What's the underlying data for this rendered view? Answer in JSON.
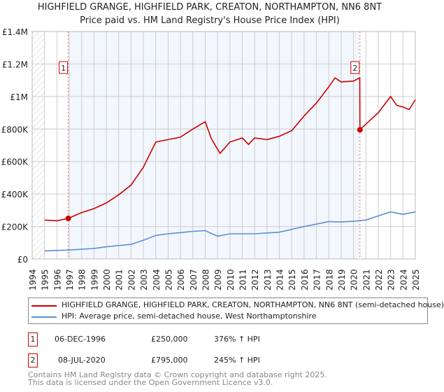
{
  "chart_data": {
    "type": "line",
    "title": "HIGHFIELD GRANGE, HIGHFIELD PARK, CREATON, NORTHAMPTON, NN6 8NT",
    "subtitle": "Price paid vs. HM Land Registry's House Price Index (HPI)",
    "xlim": [
      1994,
      2025
    ],
    "ylim": [
      0,
      1400000
    ],
    "x_ticks": [
      "1994",
      "1995",
      "1996",
      "1997",
      "1998",
      "1999",
      "2000",
      "2001",
      "2002",
      "2003",
      "2004",
      "2005",
      "2006",
      "2007",
      "2008",
      "2009",
      "2010",
      "2011",
      "2012",
      "2013",
      "2014",
      "2015",
      "2016",
      "2017",
      "2018",
      "2019",
      "2020",
      "2021",
      "2022",
      "2023",
      "2024",
      "2025"
    ],
    "y_ticks": [
      {
        "v": 0,
        "label": "£0"
      },
      {
        "v": 200000,
        "label": "£200K"
      },
      {
        "v": 400000,
        "label": "£400K"
      },
      {
        "v": 600000,
        "label": "£600K"
      },
      {
        "v": 800000,
        "label": "£800K"
      },
      {
        "v": 1000000,
        "label": "£1M"
      },
      {
        "v": 1200000,
        "label": "£1.2M"
      },
      {
        "v": 1400000,
        "label": "£1.4M"
      }
    ],
    "grid": true,
    "series": [
      {
        "name": "HIGHFIELD GRANGE, HIGHFIELD PARK, CREATON, NORTHAMPTON, NN6 8NT (semi-detached house)",
        "color": "#cc0000",
        "x": [
          1995,
          1996,
          1996.92,
          1998,
          1999,
          2000,
          2001,
          2002,
          2003,
          2004,
          2005,
          2006,
          2007,
          2008,
          2008.5,
          2009.2,
          2010,
          2011,
          2011.5,
          2012,
          2013,
          2014,
          2015,
          2016,
          2017,
          2018,
          2018.5,
          2019,
          2020,
          2020.5,
          2020.52,
          2021,
          2022,
          2023,
          2023.5,
          2024,
          2024.5,
          2025
        ],
        "y": [
          240000,
          235000,
          250000,
          285000,
          310000,
          345000,
          395000,
          455000,
          565000,
          720000,
          735000,
          750000,
          800000,
          845000,
          740000,
          650000,
          720000,
          745000,
          705000,
          745000,
          735000,
          755000,
          790000,
          880000,
          960000,
          1060000,
          1115000,
          1090000,
          1095000,
          1115000,
          795000,
          830000,
          900000,
          1000000,
          945000,
          935000,
          920000,
          980000
        ]
      },
      {
        "name": "HPI: Average price, semi-detached house, West Northamptonshire",
        "color": "#5b8fd4",
        "x": [
          1995,
          1997,
          1999,
          2000,
          2002,
          2003,
          2004,
          2005,
          2007,
          2008,
          2009,
          2010,
          2012,
          2014,
          2016,
          2018,
          2019,
          2020,
          2021,
          2022,
          2023,
          2024,
          2025
        ],
        "y": [
          50000,
          55000,
          65000,
          75000,
          90000,
          115000,
          145000,
          155000,
          170000,
          175000,
          140000,
          155000,
          155000,
          165000,
          200000,
          230000,
          228000,
          232000,
          240000,
          265000,
          290000,
          275000,
          290000
        ]
      }
    ],
    "annotations": [
      {
        "label": "1",
        "x": 1996.92,
        "y": 250000
      },
      {
        "label": "2",
        "x": 2020.52,
        "y": 795000
      }
    ]
  },
  "title_line1": "HIGHFIELD GRANGE, HIGHFIELD PARK, CREATON, NORTHAMPTON, NN6 8NT",
  "title_line2": "Price paid vs. HM Land Registry's House Price Index (HPI)",
  "legend": {
    "red": "HIGHFIELD GRANGE, HIGHFIELD PARK, CREATON, NORTHAMPTON, NN6 8NT (semi-detached house)",
    "blue": "HPI: Average price, semi-detached house, West Northamptonshire"
  },
  "sales": [
    {
      "num": "1",
      "date": "06-DEC-1996",
      "price": "£250,000",
      "hpi": "376% ↑ HPI"
    },
    {
      "num": "2",
      "date": "08-JUL-2020",
      "price": "£795,000",
      "hpi": "245% ↑ HPI"
    }
  ],
  "footer1": "Contains HM Land Registry data © Crown copyright and database right 2025.",
  "footer2": "This data is licensed under the Open Government Licence v3.0."
}
